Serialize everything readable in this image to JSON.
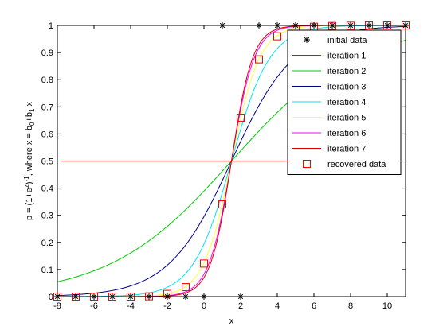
{
  "chart_data": {
    "type": "line",
    "xlabel": "x",
    "ylabel": {
      "base": "p = (1+e",
      "sup1": "z",
      "mid": ")",
      "sup2": "-1",
      "tail1": ", where x = b",
      "sub1": "0",
      "tail2": "+b",
      "sub2": "1",
      "tail3": " x"
    },
    "xlim": [
      -8,
      11
    ],
    "ylim": [
      0,
      1
    ],
    "xticks": [
      -8,
      -6,
      -4,
      -2,
      0,
      2,
      4,
      6,
      8,
      10
    ],
    "yticks": [
      0,
      0.1,
      0.2,
      0.3,
      0.4,
      0.5,
      0.6,
      0.7,
      0.8,
      0.9,
      1
    ],
    "ytick_labels": [
      "0",
      "0.1",
      "0.2",
      "0.3",
      "0.4",
      "0.5",
      "0.6",
      "0.7",
      "0.8",
      "0.9",
      "1"
    ],
    "midpoint_x": 1.5,
    "initial_data": {
      "name": "initial data",
      "color": "#000000",
      "marker": "asterisk",
      "points": [
        [
          -8,
          0
        ],
        [
          -7,
          0
        ],
        [
          -6,
          0
        ],
        [
          -5,
          0
        ],
        [
          -4,
          0
        ],
        [
          -3,
          0
        ],
        [
          -2,
          0
        ],
        [
          -1,
          0
        ],
        [
          0,
          0
        ],
        [
          2,
          0
        ],
        [
          1,
          1
        ],
        [
          3,
          1
        ],
        [
          4,
          1
        ],
        [
          5,
          1
        ],
        [
          6,
          1
        ],
        [
          7,
          1
        ],
        [
          8,
          1
        ],
        [
          9,
          1
        ],
        [
          10,
          1
        ],
        [
          11,
          1
        ]
      ]
    },
    "series": [
      {
        "name": "iteration 1",
        "color": "#ff0000",
        "slope": 0
      },
      {
        "name": "iteration 2",
        "color": "#00cc00",
        "slope": 0.3
      },
      {
        "name": "iteration 3",
        "color": "#00008b",
        "slope": 0.58
      },
      {
        "name": "iteration 4",
        "color": "#00e5ee",
        "slope": 0.95
      },
      {
        "name": "iteration 5",
        "color": "#ffff33",
        "slope": 1.3
      },
      {
        "name": "iteration 6",
        "color": "#ff00ff",
        "slope": 1.6
      },
      {
        "name": "iteration 7",
        "color": "#e00000",
        "slope": 1.72
      }
    ],
    "recovered_data": {
      "name": "recovered data",
      "color": "#ff0000",
      "marker": "square",
      "x": [
        -8,
        -7,
        -6,
        -5,
        -4,
        -3,
        -2,
        -1,
        0,
        1,
        2,
        3,
        4,
        5,
        6,
        7,
        8,
        9,
        10,
        11
      ],
      "values": [
        0.0,
        0.0,
        0.0,
        0.0,
        0.0,
        0.001,
        0.01,
        0.035,
        0.122,
        0.34,
        0.66,
        0.875,
        0.96,
        0.988,
        0.995,
        0.998,
        0.999,
        1.0,
        1.0,
        1.0
      ]
    },
    "grid": false,
    "legend_position": "top-right"
  }
}
